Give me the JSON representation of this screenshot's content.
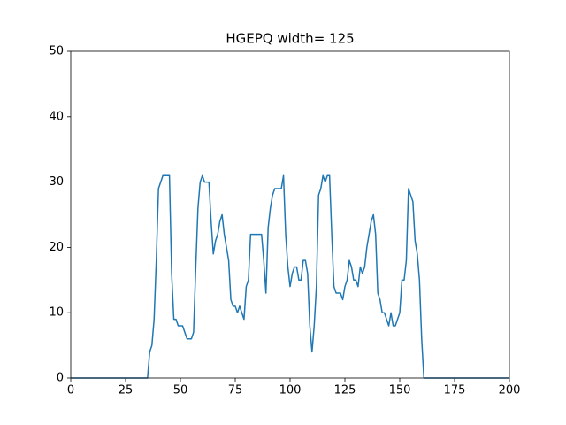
{
  "chart_data": {
    "type": "line",
    "title": "HGEPQ width= 125",
    "x": [
      0,
      1,
      2,
      3,
      4,
      5,
      6,
      7,
      8,
      9,
      10,
      11,
      12,
      13,
      14,
      15,
      16,
      17,
      18,
      19,
      20,
      21,
      22,
      23,
      24,
      25,
      26,
      27,
      28,
      29,
      30,
      31,
      32,
      33,
      34,
      35,
      36,
      37,
      38,
      39,
      40,
      41,
      42,
      43,
      44,
      45,
      46,
      47,
      48,
      49,
      50,
      51,
      52,
      53,
      54,
      55,
      56,
      57,
      58,
      59,
      60,
      61,
      62,
      63,
      64,
      65,
      66,
      67,
      68,
      69,
      70,
      71,
      72,
      73,
      74,
      75,
      76,
      77,
      78,
      79,
      80,
      81,
      82,
      83,
      84,
      85,
      86,
      87,
      88,
      89,
      90,
      91,
      92,
      93,
      94,
      95,
      96,
      97,
      98,
      99,
      100,
      101,
      102,
      103,
      104,
      105,
      106,
      107,
      108,
      109,
      110,
      111,
      112,
      113,
      114,
      115,
      116,
      117,
      118,
      119,
      120,
      121,
      122,
      123,
      124,
      125,
      126,
      127,
      128,
      129,
      130,
      131,
      132,
      133,
      134,
      135,
      136,
      137,
      138,
      139,
      140,
      141,
      142,
      143,
      144,
      145,
      146,
      147,
      148,
      149,
      150,
      151,
      152,
      153,
      154,
      155,
      156,
      157,
      158,
      159,
      160,
      161,
      162,
      163,
      164,
      165,
      166,
      167,
      168,
      169,
      170,
      171,
      172,
      173,
      174,
      175,
      176,
      177,
      178,
      179,
      180,
      181,
      182,
      183,
      184,
      185,
      186,
      187,
      188,
      189,
      190,
      191,
      192,
      193,
      194,
      195,
      196,
      197,
      198,
      199,
      200
    ],
    "series": [
      {
        "color": "#1f77b4",
        "values": [
          0,
          0,
          0,
          0,
          0,
          0,
          0,
          0,
          0,
          0,
          0,
          0,
          0,
          0,
          0,
          0,
          0,
          0,
          0,
          0,
          0,
          0,
          0,
          0,
          0,
          0,
          0,
          0,
          0,
          0,
          0,
          0,
          0,
          0,
          0,
          0,
          4,
          5,
          9,
          18,
          29,
          30,
          31,
          31,
          31,
          31,
          16,
          9,
          9,
          8,
          8,
          8,
          7,
          6,
          6,
          6,
          7,
          17,
          26,
          30,
          31,
          30,
          30,
          30,
          24,
          19,
          21,
          22,
          24,
          25,
          22,
          20,
          18,
          12,
          11,
          11,
          10,
          11,
          10,
          9,
          14,
          15,
          22,
          22,
          22,
          22,
          22,
          22,
          18,
          13,
          23,
          26,
          28,
          29,
          29,
          29,
          29,
          31,
          22,
          17,
          14,
          16,
          17,
          17,
          15,
          15,
          18,
          18,
          16,
          8,
          4,
          8,
          14,
          28,
          29,
          31,
          30,
          31,
          31,
          22,
          14,
          13,
          13,
          13,
          12,
          14,
          15,
          18,
          17,
          15,
          15,
          14,
          17,
          16,
          17,
          20,
          22,
          24,
          25,
          22,
          13,
          12,
          10,
          10,
          9,
          8,
          10,
          8,
          8,
          9,
          10,
          15,
          15,
          18,
          29,
          28,
          27,
          21,
          19,
          15,
          6,
          0,
          0,
          0,
          0,
          0,
          0,
          0,
          0,
          0,
          0,
          0,
          0,
          0,
          0,
          0,
          0,
          0,
          0,
          0,
          0,
          0,
          0,
          0,
          0,
          0,
          0,
          0,
          0,
          0,
          0,
          0,
          0,
          0,
          0,
          0,
          0,
          0,
          0,
          0,
          0
        ]
      }
    ],
    "xlim": [
      0,
      200
    ],
    "xticks": [
      0,
      25,
      50,
      75,
      100,
      125,
      150,
      175,
      200
    ],
    "ylim": [
      0,
      50
    ],
    "yticks": [
      0,
      10,
      20,
      30,
      40,
      50
    ]
  }
}
